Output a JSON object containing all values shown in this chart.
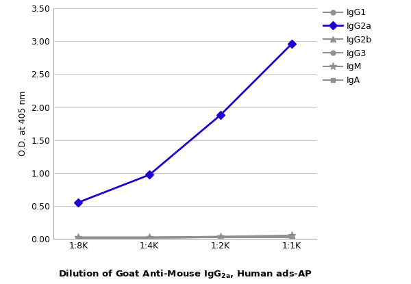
{
  "x_labels": [
    "1:8K",
    "1:4K",
    "1:2K",
    "1:1K"
  ],
  "x_values": [
    0,
    1,
    2,
    3
  ],
  "series": {
    "IgG1": {
      "values": [
        0.01,
        0.01,
        0.02,
        0.02
      ],
      "color": "#909090",
      "marker": "o",
      "ms": 5,
      "lw": 1.5,
      "zorder": 2
    },
    "IgG2a": {
      "values": [
        0.55,
        0.97,
        1.88,
        2.96
      ],
      "color": "#2200CC",
      "marker": "D",
      "ms": 6,
      "lw": 2.0,
      "zorder": 5
    },
    "IgG2b": {
      "values": [
        0.02,
        0.02,
        0.03,
        0.04
      ],
      "color": "#909090",
      "marker": "^",
      "ms": 6,
      "lw": 1.5,
      "zorder": 2
    },
    "IgG3": {
      "values": [
        0.01,
        0.01,
        0.02,
        0.02
      ],
      "color": "#909090",
      "marker": "o",
      "ms": 5,
      "lw": 1.5,
      "zorder": 2
    },
    "IgM": {
      "values": [
        0.02,
        0.02,
        0.03,
        0.05
      ],
      "color": "#909090",
      "marker": "*",
      "ms": 8,
      "lw": 1.5,
      "zorder": 2
    },
    "IgA": {
      "values": [
        0.01,
        0.01,
        0.02,
        0.02
      ],
      "color": "#909090",
      "marker": "s",
      "ms": 5,
      "lw": 1.5,
      "zorder": 2
    }
  },
  "ylabel": "O.D. at 405 nm",
  "ylim": [
    0.0,
    3.5
  ],
  "yticks": [
    0.0,
    0.5,
    1.0,
    1.5,
    2.0,
    2.5,
    3.0,
    3.5
  ],
  "grid_color": "#cccccc",
  "legend_order": [
    "IgG1",
    "IgG2a",
    "IgG2b",
    "IgG3",
    "IgM",
    "IgA"
  ],
  "legend_texts": [
    "IgG1",
    "IgG2a",
    "IgG2b",
    "IgG3",
    "IgM",
    "IgA"
  ],
  "bg_color": "#ffffff"
}
